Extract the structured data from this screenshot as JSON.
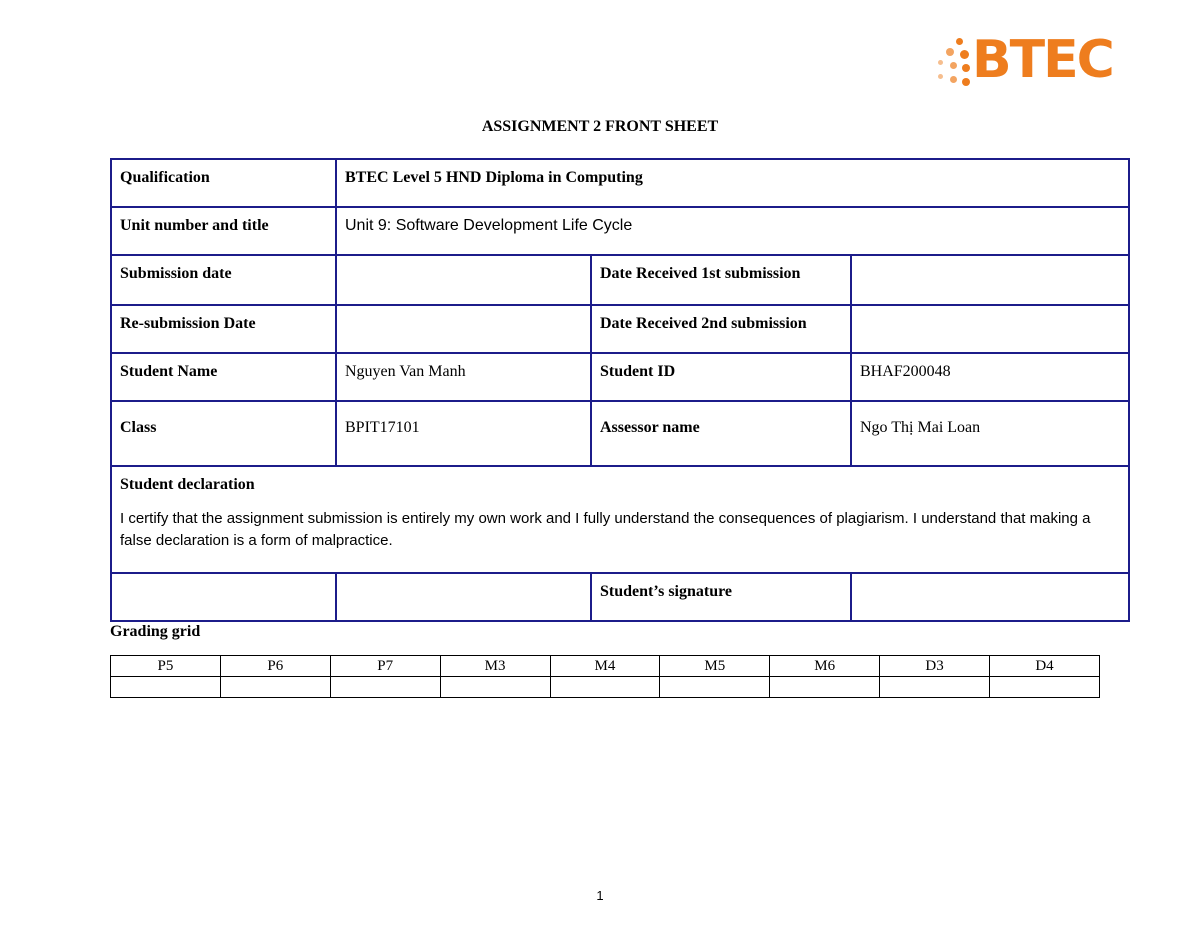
{
  "logo": {
    "text": "BTEC",
    "color": "#ee7d1e"
  },
  "title": "ASSIGNMENT 2 FRONT SHEET",
  "front": {
    "qualification_label": "Qualification",
    "qualification_value": "BTEC Level 5 HND Diploma in Computing",
    "unit_label": "Unit number and title",
    "unit_value": "Unit 9: Software Development Life Cycle",
    "submission_label": "Submission date",
    "submission_value": "",
    "received1_label": "Date Received 1st submission",
    "received1_value": "",
    "resubmission_label": "Re-submission Date",
    "resubmission_value": "",
    "received2_label": "Date Received 2nd submission",
    "received2_value": "",
    "student_name_label": "Student Name",
    "student_name_value": "Nguyen Van Manh",
    "student_id_label": "Student ID",
    "student_id_value": "BHAF200048",
    "class_label": "Class",
    "class_value": "BPIT17101",
    "assessor_label": "Assessor name",
    "assessor_value": "Ngo Thị Mai Loan",
    "declaration_label": "Student declaration",
    "declaration_text": "I certify that the assignment submission is entirely my own work and I fully understand the consequences of plagiarism. I understand that making a false declaration is a form of malpractice.",
    "signature_label": "Student’s signature"
  },
  "grading": {
    "title": "Grading grid",
    "headers": [
      "P5",
      "P6",
      "P7",
      "M3",
      "M4",
      "M5",
      "M6",
      "D3",
      "D4"
    ]
  },
  "page_number": "1"
}
